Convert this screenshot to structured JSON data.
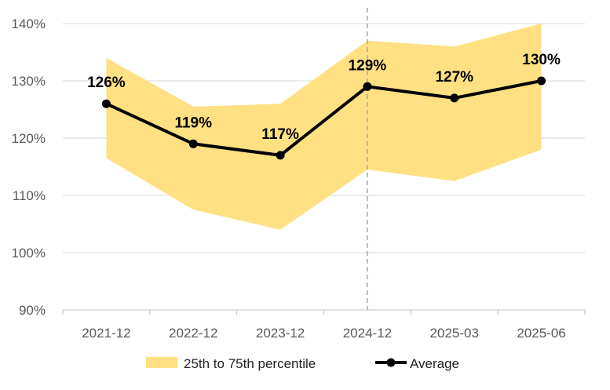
{
  "chart_data": {
    "type": "line",
    "title": "",
    "xlabel": "",
    "ylabel": "",
    "categories": [
      "2021-12",
      "2022-12",
      "2023-12",
      "2024-12",
      "2025-03",
      "2025-06"
    ],
    "y_ticks": [
      "90%",
      "100%",
      "110%",
      "120%",
      "130%",
      "140%"
    ],
    "ylim": [
      90,
      140
    ],
    "y_tick_values": [
      90,
      100,
      110,
      120,
      130,
      140
    ],
    "grid": "horizontal",
    "series": [
      {
        "name": "Average",
        "kind": "line-with-markers",
        "values": [
          126,
          119,
          117,
          129,
          127,
          130
        ],
        "labels": [
          "126%",
          "119%",
          "117%",
          "129%",
          "127%",
          "130%"
        ],
        "color": "#000000"
      },
      {
        "name": "25th to 75th percentile",
        "kind": "band",
        "lower": [
          116.5,
          107.5,
          104,
          114.5,
          112.5,
          118
        ],
        "upper": [
          134,
          125.5,
          126,
          137,
          136,
          140
        ],
        "color": "#FFE083"
      }
    ],
    "vertical_reference_line": {
      "at_category": "2024-12",
      "style": "dashed",
      "color": "#A6A6A6"
    },
    "legend": {
      "position": "bottom",
      "entries": [
        "25th to 75th percentile",
        "Average"
      ]
    }
  }
}
